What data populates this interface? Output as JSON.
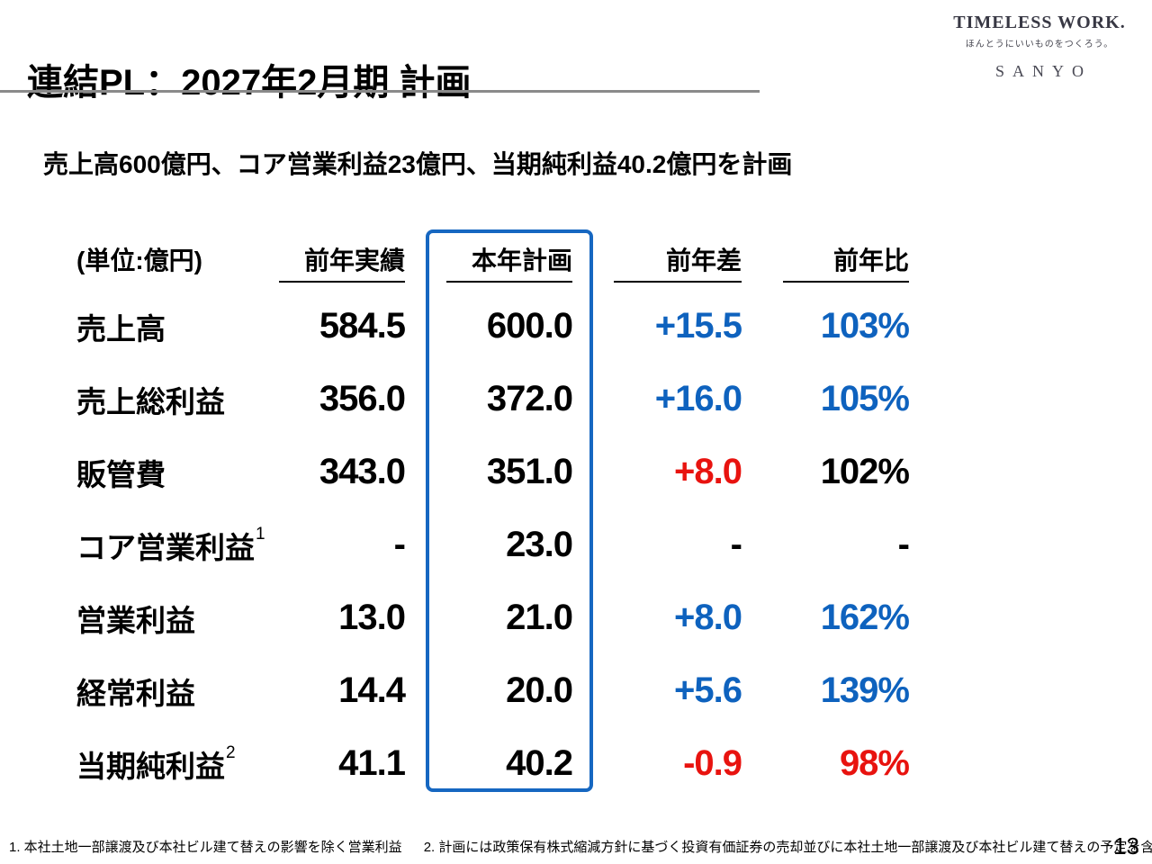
{
  "colors": {
    "blue": "#0e62be",
    "red": "#e8130f",
    "box": "#1667c1",
    "rule": "#8a8a8a"
  },
  "header": {
    "title": "連結PL：2027年2月期 計画"
  },
  "logo": {
    "brand": "TIMELESS WORK.",
    "tagline": "ほんとうにいいものをつくろう。",
    "company": "SANYO"
  },
  "subtitle": "売上高600億円、コア営業利益23億円、当期純利益40.2億円を計画",
  "table": {
    "unit_label": "(単位:億円)",
    "columns": [
      "前年実績",
      "本年計画",
      "前年差",
      "前年比"
    ],
    "rows": [
      {
        "label": "売上高",
        "sup": "",
        "prev": "584.5",
        "plan": "600.0",
        "diff": "+15.5",
        "diff_color": "blue",
        "ratio": "103%",
        "ratio_color": "blue"
      },
      {
        "label": "売上総利益",
        "sup": "",
        "prev": "356.0",
        "plan": "372.0",
        "diff": "+16.0",
        "diff_color": "blue",
        "ratio": "105%",
        "ratio_color": "blue"
      },
      {
        "label": "販管費",
        "sup": "",
        "prev": "343.0",
        "plan": "351.0",
        "diff": "+8.0",
        "diff_color": "red",
        "ratio": "102%",
        "ratio_color": "black"
      },
      {
        "label": "コア営業利益",
        "sup": "1",
        "prev": "-",
        "plan": "23.0",
        "diff": "-",
        "diff_color": "black",
        "ratio": "-",
        "ratio_color": "black"
      },
      {
        "label": "営業利益",
        "sup": "",
        "prev": "13.0",
        "plan": "21.0",
        "diff": "+8.0",
        "diff_color": "blue",
        "ratio": "162%",
        "ratio_color": "blue"
      },
      {
        "label": "経常利益",
        "sup": "",
        "prev": "14.4",
        "plan": "20.0",
        "diff": "+5.6",
        "diff_color": "blue",
        "ratio": "139%",
        "ratio_color": "blue"
      },
      {
        "label": "当期純利益",
        "sup": "2",
        "prev": "41.1",
        "plan": "40.2",
        "diff": "-0.9",
        "diff_color": "red",
        "ratio": "98%",
        "ratio_color": "red"
      }
    ]
  },
  "footer": {
    "footnote1": "1. 本社土地一部譲渡及び本社ビル建て替えの影響を除く営業利益",
    "footnote2": "2. 計画には政策保有株式縮減方針に基づく投資有価証券の売却並びに本社土地一部譲渡及び本社ビル建て替えの予定を含む",
    "page_number": "13"
  }
}
